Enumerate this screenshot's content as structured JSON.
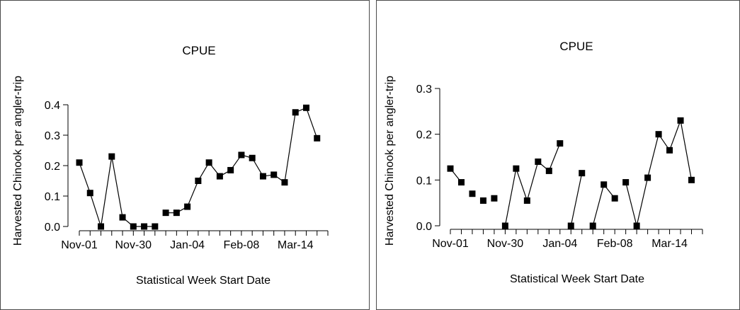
{
  "chart_data": [
    {
      "type": "line",
      "title": "CPUE",
      "xlabel": "Statistical Week Start Date",
      "ylabel": "Harvested Chinook per angler-trip",
      "ylim": [
        0,
        0.4
      ],
      "yticks": [
        0.0,
        0.1,
        0.2,
        0.3,
        0.4
      ],
      "ytick_labels": [
        "0.0",
        "0.1",
        "0.2",
        "0.3",
        "0.4"
      ],
      "xtick_labels": [
        "Nov-01",
        "Nov-30",
        "Jan-04",
        "Feb-08",
        "Mar-14"
      ],
      "xtick_label_positions": [
        1,
        6,
        11,
        16,
        21
      ],
      "x_count": 24,
      "marker": "square",
      "color": "#000000",
      "series": [
        {
          "values": [
            0.21,
            0.11,
            0.0,
            0.23,
            0.03,
            0.0,
            0.0,
            0.0,
            0.045,
            0.045,
            0.065,
            0.15,
            0.21,
            0.165,
            0.185,
            0.235,
            0.225,
            0.165,
            0.17,
            0.145,
            0.375,
            0.39,
            0.29
          ]
        }
      ],
      "line_gaps_after": [
        8
      ]
    },
    {
      "type": "line",
      "title": "CPUE",
      "xlabel": "Statistical Week Start Date",
      "ylabel": "Harvested Chinook per angler-trip",
      "ylim": [
        0,
        0.3
      ],
      "yticks": [
        0.0,
        0.1,
        0.2,
        0.3
      ],
      "ytick_labels": [
        "0.0",
        "0.1",
        "0.2",
        "0.3"
      ],
      "xtick_labels": [
        "Nov-01",
        "Nov-30",
        "Jan-04",
        "Feb-08",
        "Mar-14"
      ],
      "xtick_label_positions": [
        1,
        6,
        11,
        16,
        21
      ],
      "x_count": 24,
      "marker": "square",
      "color": "#000000",
      "series": [
        {
          "values": [
            0.125,
            0.095,
            0.07,
            0.055,
            0.06,
            0.0,
            0.125,
            0.055,
            0.14,
            0.12,
            0.18,
            0.0,
            0.115,
            0.0,
            0.09,
            0.06,
            0.095,
            0.0,
            0.105,
            0.2,
            0.165,
            0.23,
            0.1
          ]
        }
      ],
      "line_gaps_after": [
        2,
        3,
        4,
        5,
        11,
        13,
        16
      ]
    }
  ]
}
